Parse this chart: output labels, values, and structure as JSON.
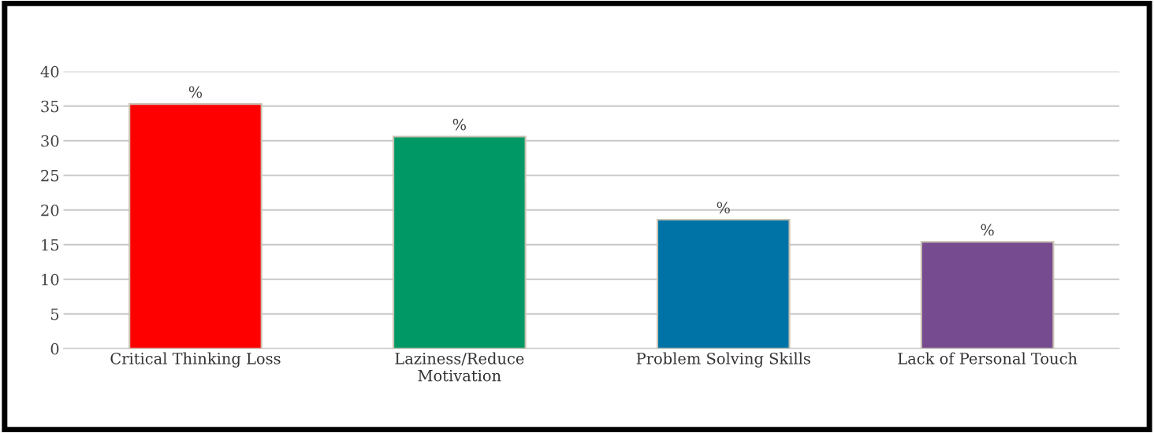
{
  "chart_data": {
    "type": "bar",
    "categories": [
      "Critical Thinking Loss",
      "Laziness/Reduce\nMotivation",
      "Problem Solving Skills",
      "Lack of Personal Touch"
    ],
    "values": [
      35.3,
      30.6,
      18.6,
      15.4
    ],
    "colors": [
      "#ff0000",
      "#009966",
      "#0073a6",
      "#764b8f"
    ],
    "value_labels": [
      "%",
      "%",
      "%",
      "%"
    ],
    "ylim": [
      0,
      40
    ],
    "yticks": [
      0,
      5,
      10,
      15,
      20,
      25,
      30,
      35,
      40
    ],
    "grid": "y",
    "legend": false
  }
}
